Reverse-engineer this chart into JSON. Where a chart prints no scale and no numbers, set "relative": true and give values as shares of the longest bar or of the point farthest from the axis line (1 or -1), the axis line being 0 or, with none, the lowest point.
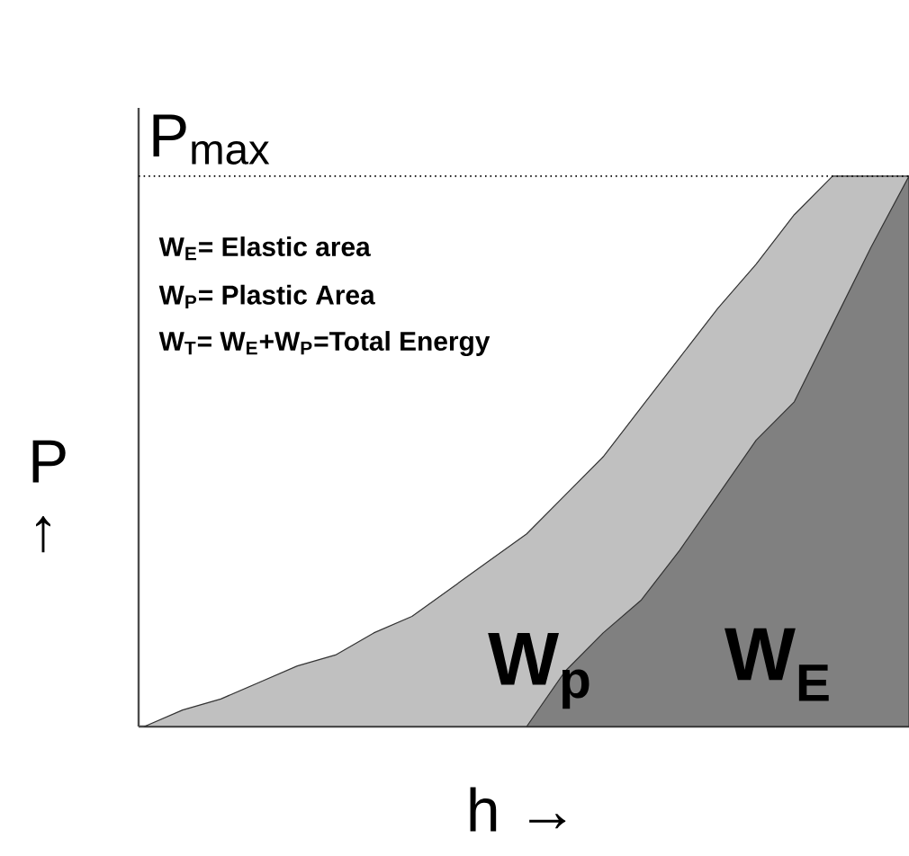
{
  "chart_data": {
    "type": "area",
    "relative": true,
    "xlabel": "h →",
    "ylabel": "P ↑",
    "categories": [
      null,
      null,
      null,
      null,
      null,
      null,
      null,
      null,
      null,
      null,
      null,
      null,
      null,
      null,
      null,
      null,
      null,
      null,
      null,
      null,
      null
    ],
    "series": [
      {
        "color": "#c0c0c0",
        "values": [
          0,
          0.03,
          0.05,
          0.08,
          0.11,
          0.13,
          0.17,
          0.2,
          0.25,
          0.3,
          0.35,
          0.42,
          0.49,
          0.58,
          0.67,
          0.76,
          0.84,
          0.93,
          1,
          1,
          1
        ]
      },
      {
        "color": "#808080",
        "values": [
          null,
          null,
          null,
          null,
          null,
          null,
          null,
          null,
          null,
          null,
          0,
          0.1,
          0.17,
          0.23,
          0.32,
          0.42,
          0.52,
          0.59,
          0.73,
          0.87,
          1
        ]
      }
    ],
    "ref_lines": [
      {
        "axis": "y",
        "value": 1,
        "label": "P$_{max}$",
        "line_style": "dotted"
      }
    ],
    "annotations": [
      "W$_{E}$= Elastic area",
      "W$_{P}$= Plastic Area",
      "W$_{T}$= W$_{E}$+W$_{P}$=Total Energy",
      "W$_{p}$",
      "W$_{E}$"
    ]
  }
}
